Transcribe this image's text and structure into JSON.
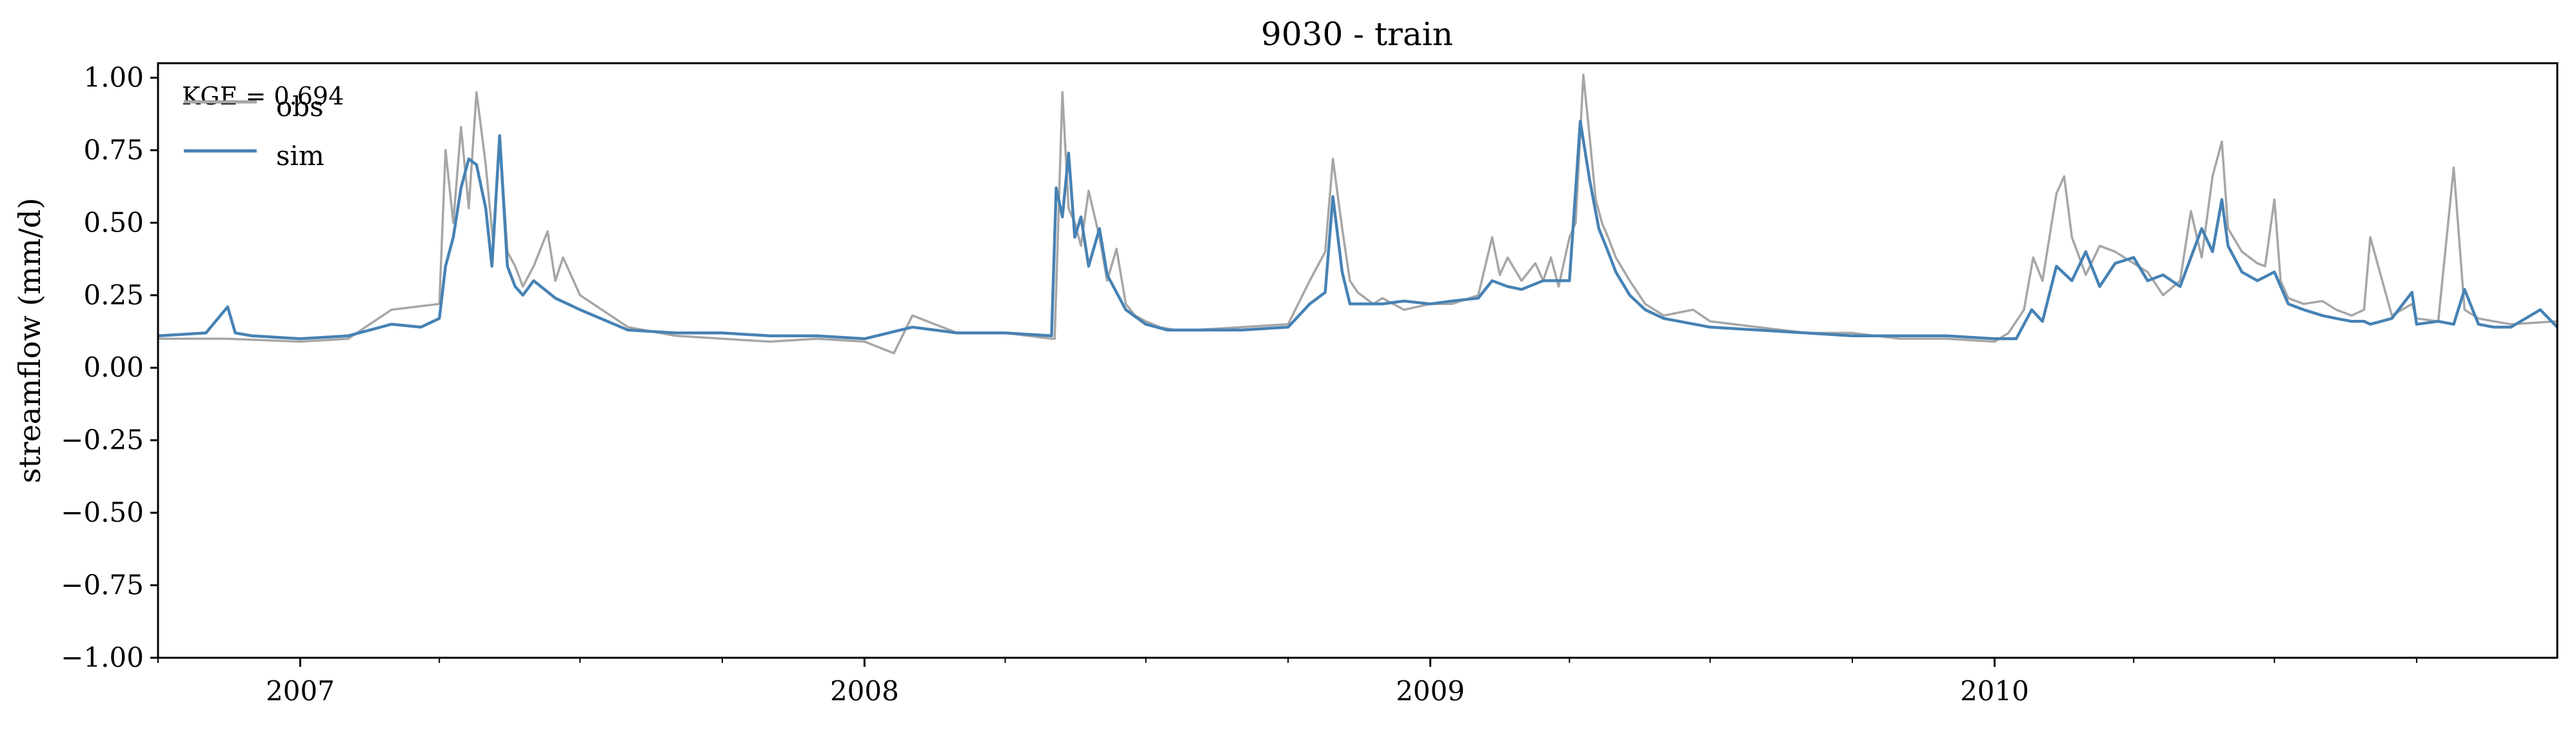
{
  "chart_data": {
    "type": "line",
    "title": "9030 - train",
    "xlabel": "",
    "ylabel": "streamflow (mm/d)",
    "annotation": "KGE = 0.694",
    "ylim": [
      -1.0,
      1.05
    ],
    "xlim": [
      "2006-10-01",
      "2010-12-31"
    ],
    "grid": false,
    "legend": {
      "placement": "upper-left"
    },
    "x_ticks": [
      {
        "label": "2007",
        "date": "2007-01-01"
      },
      {
        "label": "2008",
        "date": "2008-01-01"
      },
      {
        "label": "2009",
        "date": "2009-01-01"
      },
      {
        "label": "2010",
        "date": "2010-01-01"
      }
    ],
    "y_ticks": [
      "1.00",
      "0.75",
      "0.50",
      "0.25",
      "0.00",
      "−0.25",
      "−0.50",
      "−0.75",
      "−1.00"
    ],
    "series": [
      {
        "name": "obs",
        "color": "#a6a6a6",
        "x": [
          "2006-10-01",
          "2006-11-15",
          "2007-01-01",
          "2007-02-01",
          "2007-03-01",
          "2007-04-01",
          "2007-04-05",
          "2007-04-10",
          "2007-04-15",
          "2007-04-20",
          "2007-04-25",
          "2007-05-01",
          "2007-05-06",
          "2007-05-10",
          "2007-05-15",
          "2007-05-20",
          "2007-05-25",
          "2007-06-01",
          "2007-06-10",
          "2007-06-15",
          "2007-06-20",
          "2007-07-01",
          "2007-08-01",
          "2007-09-01",
          "2007-10-01",
          "2007-11-01",
          "2007-12-01",
          "2008-01-01",
          "2008-01-20",
          "2008-02-01",
          "2008-03-01",
          "2008-04-01",
          "2008-05-01",
          "2008-05-03",
          "2008-05-08",
          "2008-05-12",
          "2008-05-16",
          "2008-05-20",
          "2008-05-25",
          "2008-06-01",
          "2008-06-06",
          "2008-06-12",
          "2008-06-18",
          "2008-06-24",
          "2008-07-01",
          "2008-07-10",
          "2008-07-20",
          "2008-08-01",
          "2008-09-01",
          "2008-10-01",
          "2008-10-15",
          "2008-10-25",
          "2008-10-30",
          "2008-11-05",
          "2008-11-10",
          "2008-11-15",
          "2008-11-25",
          "2008-12-01",
          "2008-12-15",
          "2009-01-01",
          "2009-01-15",
          "2009-02-01",
          "2009-02-10",
          "2009-02-15",
          "2009-02-20",
          "2009-03-01",
          "2009-03-10",
          "2009-03-15",
          "2009-03-20",
          "2009-03-25",
          "2009-04-01",
          "2009-04-05",
          "2009-04-10",
          "2009-04-14",
          "2009-04-18",
          "2009-04-22",
          "2009-04-26",
          "2009-05-01",
          "2009-05-10",
          "2009-05-20",
          "2009-06-01",
          "2009-06-20",
          "2009-07-01",
          "2009-08-01",
          "2009-09-01",
          "2009-10-01",
          "2009-11-01",
          "2009-12-01",
          "2010-01-01",
          "2010-01-10",
          "2010-01-20",
          "2010-01-26",
          "2010-02-01",
          "2010-02-10",
          "2010-02-15",
          "2010-02-20",
          "2010-03-01",
          "2010-03-10",
          "2010-03-20",
          "2010-04-01",
          "2010-04-10",
          "2010-04-20",
          "2010-05-01",
          "2010-05-08",
          "2010-05-15",
          "2010-05-22",
          "2010-05-28",
          "2010-06-01",
          "2010-06-10",
          "2010-06-20",
          "2010-06-25",
          "2010-07-01",
          "2010-07-05",
          "2010-07-10",
          "2010-07-20",
          "2010-08-01",
          "2010-08-10",
          "2010-08-20",
          "2010-08-28",
          "2010-09-01",
          "2010-09-15",
          "2010-09-28",
          "2010-10-01",
          "2010-10-15",
          "2010-10-25",
          "2010-11-01",
          "2010-11-10",
          "2010-11-20",
          "2010-12-01",
          "2010-12-31"
        ],
        "values": [
          0.1,
          0.1,
          0.09,
          0.1,
          0.2,
          0.22,
          0.75,
          0.5,
          0.83,
          0.55,
          0.95,
          0.7,
          0.42,
          0.8,
          0.4,
          0.35,
          0.28,
          0.35,
          0.47,
          0.3,
          0.38,
          0.25,
          0.14,
          0.11,
          0.1,
          0.09,
          0.1,
          0.09,
          0.05,
          0.18,
          0.12,
          0.12,
          0.1,
          0.1,
          0.95,
          0.55,
          0.5,
          0.42,
          0.61,
          0.45,
          0.3,
          0.41,
          0.22,
          0.18,
          0.16,
          0.14,
          0.13,
          0.13,
          0.14,
          0.15,
          0.3,
          0.4,
          0.72,
          0.48,
          0.3,
          0.26,
          0.22,
          0.24,
          0.2,
          0.22,
          0.22,
          0.25,
          0.45,
          0.32,
          0.38,
          0.3,
          0.36,
          0.3,
          0.38,
          0.28,
          0.45,
          0.5,
          1.01,
          0.8,
          0.58,
          0.5,
          0.45,
          0.38,
          0.3,
          0.22,
          0.18,
          0.2,
          0.16,
          0.14,
          0.12,
          0.12,
          0.1,
          0.1,
          0.09,
          0.12,
          0.2,
          0.38,
          0.3,
          0.6,
          0.66,
          0.45,
          0.32,
          0.42,
          0.4,
          0.36,
          0.33,
          0.25,
          0.3,
          0.54,
          0.38,
          0.66,
          0.78,
          0.48,
          0.4,
          0.36,
          0.35,
          0.58,
          0.3,
          0.24,
          0.22,
          0.23,
          0.2,
          0.18,
          0.2,
          0.45,
          0.18,
          0.22,
          0.17,
          0.16,
          0.69,
          0.2,
          0.17,
          0.16,
          0.15,
          0.16
        ]
      },
      {
        "name": "sim",
        "color": "#4682b4",
        "x": [
          "2006-10-01",
          "2006-11-01",
          "2006-11-15",
          "2006-11-20",
          "2006-12-01",
          "2007-01-01",
          "2007-02-01",
          "2007-03-01",
          "2007-03-20",
          "2007-04-01",
          "2007-04-05",
          "2007-04-10",
          "2007-04-15",
          "2007-04-20",
          "2007-04-25",
          "2007-05-01",
          "2007-05-05",
          "2007-05-10",
          "2007-05-15",
          "2007-05-20",
          "2007-05-25",
          "2007-06-01",
          "2007-06-15",
          "2007-07-01",
          "2007-08-01",
          "2007-09-01",
          "2007-10-01",
          "2007-11-01",
          "2007-12-01",
          "2008-01-01",
          "2008-02-01",
          "2008-03-01",
          "2008-04-01",
          "2008-05-01",
          "2008-05-04",
          "2008-05-08",
          "2008-05-12",
          "2008-05-16",
          "2008-05-20",
          "2008-05-25",
          "2008-06-01",
          "2008-06-06",
          "2008-06-12",
          "2008-06-18",
          "2008-07-01",
          "2008-07-15",
          "2008-08-01",
          "2008-09-01",
          "2008-10-01",
          "2008-10-15",
          "2008-10-25",
          "2008-10-30",
          "2008-11-05",
          "2008-11-10",
          "2008-11-20",
          "2008-12-01",
          "2008-12-15",
          "2009-01-01",
          "2009-01-15",
          "2009-02-01",
          "2009-02-10",
          "2009-02-20",
          "2009-03-01",
          "2009-03-15",
          "2009-04-01",
          "2009-04-08",
          "2009-04-14",
          "2009-04-20",
          "2009-04-26",
          "2009-05-01",
          "2009-05-10",
          "2009-05-20",
          "2009-06-01",
          "2009-07-01",
          "2009-08-01",
          "2009-09-01",
          "2009-10-01",
          "2009-11-01",
          "2009-12-01",
          "2010-01-01",
          "2010-01-15",
          "2010-01-25",
          "2010-02-01",
          "2010-02-10",
          "2010-02-20",
          "2010-03-01",
          "2010-03-10",
          "2010-03-20",
          "2010-04-01",
          "2010-04-10",
          "2010-04-20",
          "2010-05-01",
          "2010-05-08",
          "2010-05-15",
          "2010-05-22",
          "2010-05-28",
          "2010-06-01",
          "2010-06-10",
          "2010-06-20",
          "2010-07-01",
          "2010-07-10",
          "2010-07-20",
          "2010-08-01",
          "2010-08-10",
          "2010-08-20",
          "2010-08-28",
          "2010-09-01",
          "2010-09-15",
          "2010-09-28",
          "2010-10-01",
          "2010-10-15",
          "2010-10-25",
          "2010-11-01",
          "2010-11-10",
          "2010-11-20",
          "2010-12-01",
          "2010-12-20",
          "2010-12-31"
        ],
        "values": [
          0.11,
          0.12,
          0.21,
          0.12,
          0.11,
          0.1,
          0.11,
          0.15,
          0.14,
          0.17,
          0.35,
          0.45,
          0.62,
          0.72,
          0.7,
          0.55,
          0.35,
          0.8,
          0.35,
          0.28,
          0.25,
          0.3,
          0.24,
          0.2,
          0.13,
          0.12,
          0.12,
          0.11,
          0.11,
          0.1,
          0.14,
          0.12,
          0.12,
          0.11,
          0.62,
          0.52,
          0.74,
          0.45,
          0.52,
          0.35,
          0.48,
          0.32,
          0.26,
          0.2,
          0.15,
          0.13,
          0.13,
          0.13,
          0.14,
          0.22,
          0.26,
          0.59,
          0.33,
          0.22,
          0.22,
          0.22,
          0.23,
          0.22,
          0.23,
          0.24,
          0.3,
          0.28,
          0.27,
          0.3,
          0.3,
          0.85,
          0.65,
          0.48,
          0.4,
          0.33,
          0.25,
          0.2,
          0.17,
          0.14,
          0.13,
          0.12,
          0.11,
          0.11,
          0.11,
          0.1,
          0.1,
          0.2,
          0.16,
          0.35,
          0.3,
          0.4,
          0.28,
          0.36,
          0.38,
          0.3,
          0.32,
          0.28,
          0.38,
          0.48,
          0.4,
          0.58,
          0.42,
          0.33,
          0.3,
          0.33,
          0.22,
          0.2,
          0.18,
          0.17,
          0.16,
          0.16,
          0.15,
          0.17,
          0.26,
          0.15,
          0.16,
          0.15,
          0.27,
          0.15,
          0.14,
          0.14,
          0.2,
          0.14
        ]
      }
    ]
  }
}
